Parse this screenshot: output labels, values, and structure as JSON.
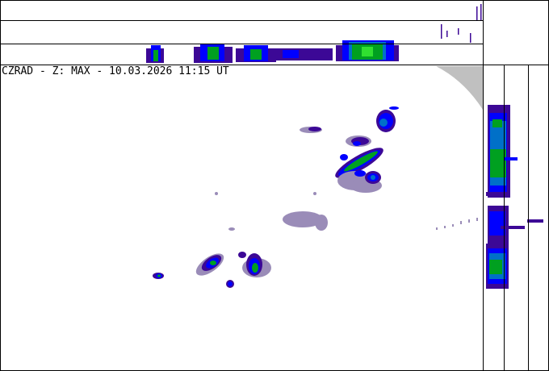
{
  "title": "CZRAD - Z: MAX - 10.03.2026 11:15 UT",
  "colors": {
    "weak": "#9a8cb8",
    "very_low": "#3c0896",
    "low": "#0000ff",
    "medium": "#0070c8",
    "moderate": "#00a020",
    "high": "#30e030",
    "out_of_range": "#c0c0c0"
  }
}
